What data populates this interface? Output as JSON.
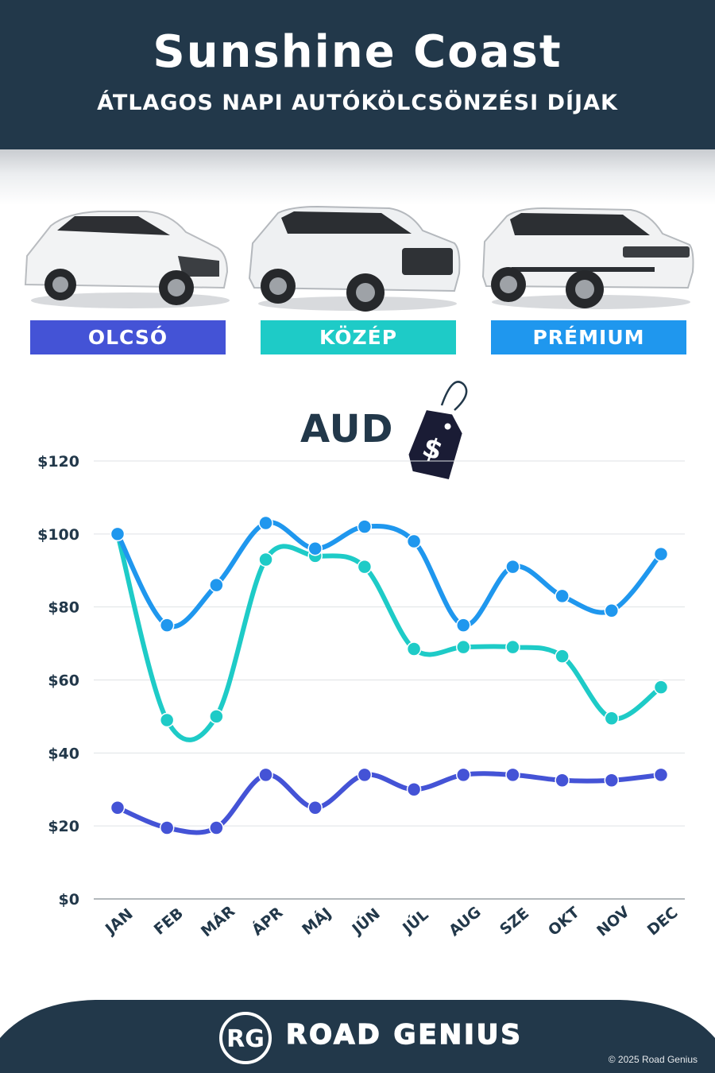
{
  "header": {
    "title": "Sunshine Coast",
    "subtitle": "ÁTLAGOS NAPI AUTÓKÖLCSÖNZÉSI DÍJAK"
  },
  "categories": [
    {
      "label": "OLCSÓ",
      "color": "#4453d6"
    },
    {
      "label": "KÖZÉP",
      "color": "#1ecbc7"
    },
    {
      "label": "PRÉMIUM",
      "color": "#1f97ee"
    }
  ],
  "currency": "AUD",
  "tag_symbol": "$",
  "chart_data": {
    "type": "line",
    "categories": [
      "JAN",
      "FEB",
      "MÁR",
      "ÁPR",
      "MÁJ",
      "JÚN",
      "JÚL",
      "AUG",
      "SZE",
      "OKT",
      "NOV",
      "DEC"
    ],
    "ylim": [
      0,
      120
    ],
    "yticks": [
      0,
      20,
      40,
      60,
      80,
      100,
      120
    ],
    "ytick_labels": [
      "$0",
      "$20",
      "$40",
      "$60",
      "$80",
      "$100",
      "$120"
    ],
    "grid": true,
    "series": [
      {
        "name": "OLCSÓ",
        "color": "#4453d6",
        "values": [
          25,
          19.5,
          19.5,
          34,
          25,
          34,
          30,
          34,
          34,
          32.5,
          32.5,
          34
        ]
      },
      {
        "name": "KÖZÉP",
        "color": "#1ecbc7",
        "values": [
          100,
          49,
          50,
          93,
          94,
          91,
          68.5,
          69,
          69,
          66.5,
          49.5,
          58
        ]
      },
      {
        "name": "PRÉMIUM",
        "color": "#1f97ee",
        "values": [
          100,
          75,
          86,
          103,
          96,
          102,
          98,
          75,
          91,
          83,
          79,
          94.5
        ]
      }
    ]
  },
  "footer": {
    "logo_text": "RG",
    "brand": "ROAD GENIUS",
    "copyright": "© 2025 Road Genius"
  }
}
